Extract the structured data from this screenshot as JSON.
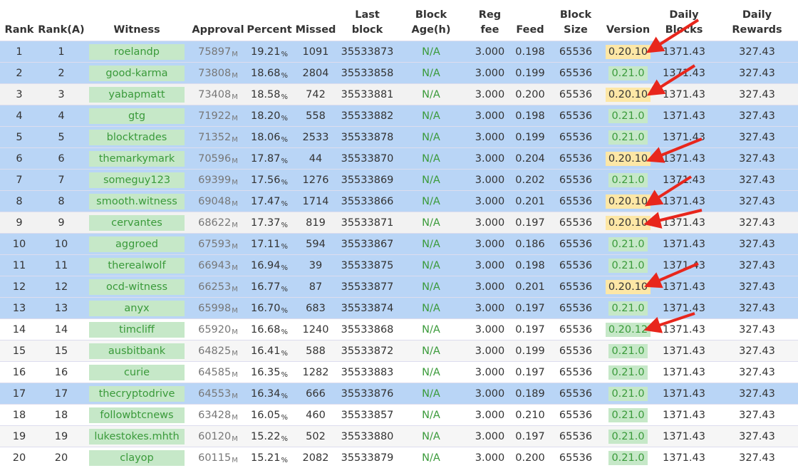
{
  "table": {
    "headers": [
      "Rank",
      "Rank(A)",
      "Witness",
      "Approval",
      "Percent",
      "Missed",
      "Last\nblock",
      "Block\nAge(h)",
      "Reg\nfee",
      "Feed",
      "Block\nSize",
      "Version",
      "Daily\nBlocks",
      "Daily\nRewards"
    ],
    "approval_unit": "M",
    "percent_unit": "%",
    "rows": [
      [
        "1",
        "1",
        "roelandp",
        "75897",
        "19.21",
        "1091",
        "35533873",
        "N/A",
        "3.000",
        "0.198",
        "65536",
        "0.20.10",
        "1371.43",
        "327.43"
      ],
      [
        "2",
        "2",
        "good-karma",
        "73808",
        "18.68",
        "2804",
        "35533858",
        "N/A",
        "3.000",
        "0.199",
        "65536",
        "0.21.0",
        "1371.43",
        "327.43"
      ],
      [
        "3",
        "3",
        "yabapmatt",
        "73408",
        "18.58",
        "742",
        "35533881",
        "N/A",
        "3.000",
        "0.200",
        "65536",
        "0.20.10",
        "1371.43",
        "327.43"
      ],
      [
        "4",
        "4",
        "gtg",
        "71922",
        "18.20",
        "558",
        "35533882",
        "N/A",
        "3.000",
        "0.198",
        "65536",
        "0.21.0",
        "1371.43",
        "327.43"
      ],
      [
        "5",
        "5",
        "blocktrades",
        "71352",
        "18.06",
        "2533",
        "35533878",
        "N/A",
        "3.000",
        "0.199",
        "65536",
        "0.21.0",
        "1371.43",
        "327.43"
      ],
      [
        "6",
        "6",
        "themarkymark",
        "70596",
        "17.87",
        "44",
        "35533870",
        "N/A",
        "3.000",
        "0.204",
        "65536",
        "0.20.10",
        "1371.43",
        "327.43"
      ],
      [
        "7",
        "7",
        "someguy123",
        "69399",
        "17.56",
        "1276",
        "35533869",
        "N/A",
        "3.000",
        "0.202",
        "65536",
        "0.21.0",
        "1371.43",
        "327.43"
      ],
      [
        "8",
        "8",
        "smooth.witness",
        "69048",
        "17.47",
        "1714",
        "35533866",
        "N/A",
        "3.000",
        "0.201",
        "65536",
        "0.20.10",
        "1371.43",
        "327.43"
      ],
      [
        "9",
        "9",
        "cervantes",
        "68622",
        "17.37",
        "819",
        "35533871",
        "N/A",
        "3.000",
        "0.197",
        "65536",
        "0.20.10",
        "1371.43",
        "327.43"
      ],
      [
        "10",
        "10",
        "aggroed",
        "67593",
        "17.11",
        "594",
        "35533867",
        "N/A",
        "3.000",
        "0.186",
        "65536",
        "0.21.0",
        "1371.43",
        "327.43"
      ],
      [
        "11",
        "11",
        "therealwolf",
        "66943",
        "16.94",
        "39",
        "35533875",
        "N/A",
        "3.000",
        "0.198",
        "65536",
        "0.21.0",
        "1371.43",
        "327.43"
      ],
      [
        "12",
        "12",
        "ocd-witness",
        "66253",
        "16.77",
        "87",
        "35533877",
        "N/A",
        "3.000",
        "0.201",
        "65536",
        "0.20.10",
        "1371.43",
        "327.43"
      ],
      [
        "13",
        "13",
        "anyx",
        "65998",
        "16.70",
        "683",
        "35533874",
        "N/A",
        "3.000",
        "0.197",
        "65536",
        "0.21.0",
        "1371.43",
        "327.43"
      ],
      [
        "14",
        "14",
        "timcliff",
        "65920",
        "16.68",
        "1240",
        "35533868",
        "N/A",
        "3.000",
        "0.197",
        "65536",
        "0.20.12",
        "1371.43",
        "327.43"
      ],
      [
        "15",
        "15",
        "ausbitbank",
        "64825",
        "16.41",
        "588",
        "35533872",
        "N/A",
        "3.000",
        "0.199",
        "65536",
        "0.21.0",
        "1371.43",
        "327.43"
      ],
      [
        "16",
        "16",
        "curie",
        "64585",
        "16.35",
        "1282",
        "35533883",
        "N/A",
        "3.000",
        "0.197",
        "65536",
        "0.21.0",
        "1371.43",
        "327.43"
      ],
      [
        "17",
        "17",
        "thecryptodrive",
        "64553",
        "16.34",
        "666",
        "35533876",
        "N/A",
        "3.000",
        "0.189",
        "65536",
        "0.21.0",
        "1371.43",
        "327.43"
      ],
      [
        "18",
        "18",
        "followbtcnews",
        "63428",
        "16.05",
        "460",
        "35533857",
        "N/A",
        "3.000",
        "0.210",
        "65536",
        "0.21.0",
        "1371.43",
        "327.43"
      ],
      [
        "19",
        "19",
        "lukestokes.mhth",
        "60120",
        "15.22",
        "502",
        "35533880",
        "N/A",
        "3.000",
        "0.197",
        "65536",
        "0.21.0",
        "1371.43",
        "327.43"
      ],
      [
        "20",
        "20",
        "clayop",
        "60115",
        "15.21",
        "2082",
        "35533879",
        "N/A",
        "3.000",
        "0.200",
        "65536",
        "0.21.0",
        "1371.43",
        "327.43"
      ]
    ]
  }
}
